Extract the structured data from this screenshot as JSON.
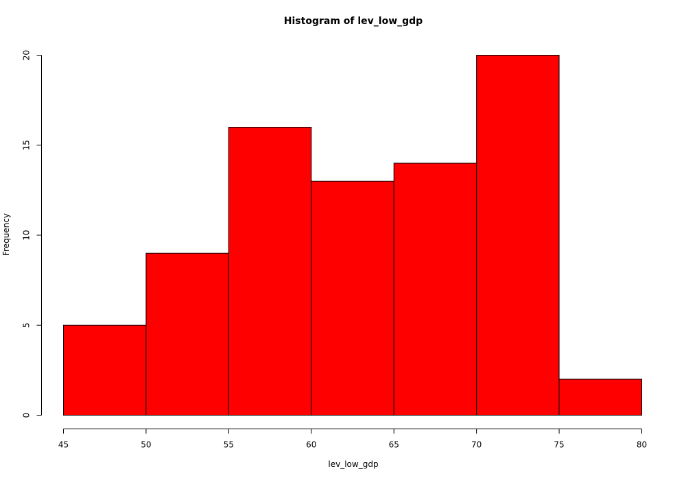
{
  "chart_data": {
    "type": "bar",
    "histogram": true,
    "title": "Histogram of lev_low_gdp",
    "xlabel": "lev_low_gdp",
    "ylabel": "Frequency",
    "bins": [
      {
        "start": 45,
        "end": 50,
        "count": 5
      },
      {
        "start": 50,
        "end": 55,
        "count": 9
      },
      {
        "start": 55,
        "end": 60,
        "count": 16
      },
      {
        "start": 60,
        "end": 65,
        "count": 13
      },
      {
        "start": 65,
        "end": 70,
        "count": 14
      },
      {
        "start": 70,
        "end": 75,
        "count": 20
      },
      {
        "start": 75,
        "end": 80,
        "count": 2
      }
    ],
    "xlim": [
      45,
      80
    ],
    "ylim": [
      0,
      20
    ],
    "x_ticks": [
      "45",
      "50",
      "55",
      "60",
      "65",
      "70",
      "75",
      "80"
    ],
    "y_ticks": [
      "0",
      "5",
      "10",
      "15",
      "20"
    ],
    "grid": false,
    "bar_color": "#ff0000",
    "border_color": "#000000"
  }
}
